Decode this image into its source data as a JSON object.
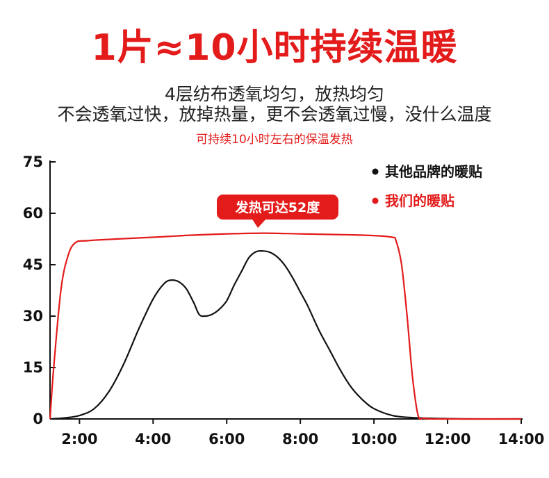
{
  "header": {
    "headline": "1片≈10小时持续温暖",
    "line1": "4层纺布透氧均匀，放热均匀",
    "line2": "不会透氧过快，放掉热量，更不会透氧过慢，没什么温度",
    "line3": "可持续10小时左右的保温发热"
  },
  "chart_data": {
    "type": "line",
    "title": "",
    "xlabel": "",
    "ylabel": "",
    "x_ticks": [
      "2:00",
      "4:00",
      "6:00",
      "8:00",
      "10:00",
      "12:00",
      "14:00"
    ],
    "y_ticks": [
      "0",
      "15",
      "30",
      "45",
      "60",
      "75"
    ],
    "xlim": [
      1.2,
      14.0
    ],
    "ylim": [
      0,
      75
    ],
    "grid": false,
    "legend_position": "top-right",
    "annotation": "发热可达52度",
    "colors": {
      "black": "#111111",
      "red": "#e31b1b"
    },
    "series": [
      {
        "name": "其他品牌的暖贴",
        "color": "#111111",
        "x": [
          1.2,
          1.6,
          2.0,
          2.4,
          2.8,
          3.2,
          3.6,
          4.0,
          4.3,
          4.5,
          4.7,
          4.9,
          5.1,
          5.25,
          5.4,
          5.6,
          5.8,
          6.0,
          6.2,
          6.4,
          6.6,
          6.8,
          7.0,
          7.2,
          7.4,
          7.6,
          7.8,
          8.0,
          8.2,
          8.5,
          8.8,
          9.1,
          9.4,
          9.7,
          10.0,
          10.5,
          11.0,
          11.5,
          12.5,
          14.0
        ],
        "y": [
          0,
          0.3,
          1,
          3,
          8,
          16,
          26,
          35,
          39.5,
          40.5,
          40,
          38,
          34,
          30.5,
          30,
          30.5,
          32,
          34.5,
          39,
          43,
          47,
          48.8,
          49,
          48.5,
          47,
          44.5,
          41,
          37,
          33,
          26,
          20,
          14,
          9,
          5.5,
          3,
          1,
          0.4,
          0.2,
          0,
          0
        ]
      },
      {
        "name": "我们的暖贴",
        "color": "#e31b1b",
        "x": [
          1.2,
          1.3,
          1.5,
          1.7,
          1.9,
          2.2,
          3.0,
          4.0,
          5.0,
          6.0,
          7.0,
          8.0,
          9.0,
          10.0,
          10.5,
          10.6,
          10.75,
          10.9,
          11.05,
          11.2,
          11.35,
          11.6,
          12.0,
          14.0
        ],
        "y": [
          0,
          15,
          38,
          48,
          51.5,
          52,
          52.5,
          53,
          53.6,
          54,
          54.2,
          54,
          53.8,
          53.5,
          53,
          52,
          45,
          30,
          12,
          1,
          0.2,
          0,
          0,
          0
        ]
      }
    ]
  }
}
